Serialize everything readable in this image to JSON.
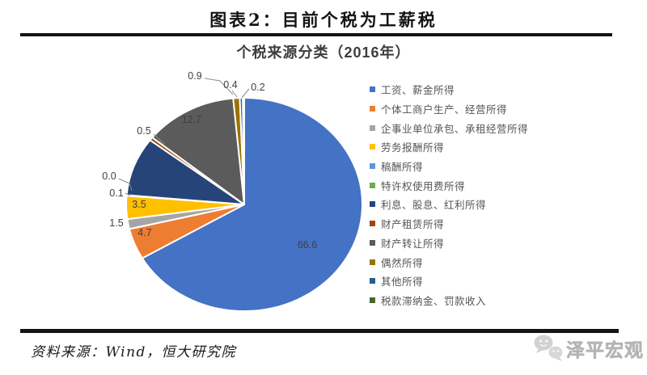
{
  "header": {
    "title": "图表2：目前个税为工薪税"
  },
  "chart": {
    "title": "个税来源分类（2016年）"
  },
  "chart_data": {
    "type": "pie",
    "title": "个税来源分类（2016年）",
    "unit": "percent",
    "start_angle_deg": 0,
    "direction": "clockwise",
    "legend_position": "right",
    "categories": [
      "工资、薪金所得",
      "个体工商户生产、经营所得",
      "企事业单位承包、承租经营所得",
      "劳务报酬所得",
      "稿酬所得",
      "特许权使用费所得",
      "利息、股息、红利所得",
      "财产租赁所得",
      "财产转让所得",
      "偶然所得",
      "其他所得",
      "税款滞纳金、罚款收入"
    ],
    "values": [
      66.6,
      4.7,
      1.5,
      3.5,
      0.1,
      0.0,
      8.9,
      0.5,
      12.7,
      0.9,
      0.4,
      0.2
    ],
    "data_labels": [
      "66.6",
      "4.7",
      "1.5",
      "3.5",
      "0.1",
      "0.0",
      "",
      "0.5",
      "12.7",
      "0.9",
      "0.4",
      "0.2"
    ],
    "colors": [
      "#4472C4",
      "#ED7D31",
      "#A5A5A5",
      "#FFC000",
      "#5B9BD5",
      "#70AD47",
      "#264478",
      "#9E480E",
      "#5B5B5B",
      "#997300",
      "#255E91",
      "#43682B"
    ],
    "label_color": "#404040",
    "leader_line_color": "#8c8c8c",
    "slice_border_color": "#ffffff"
  },
  "footer": {
    "source": "资料来源：Wind，恒大研究院",
    "watermark": "泽平宏观"
  }
}
